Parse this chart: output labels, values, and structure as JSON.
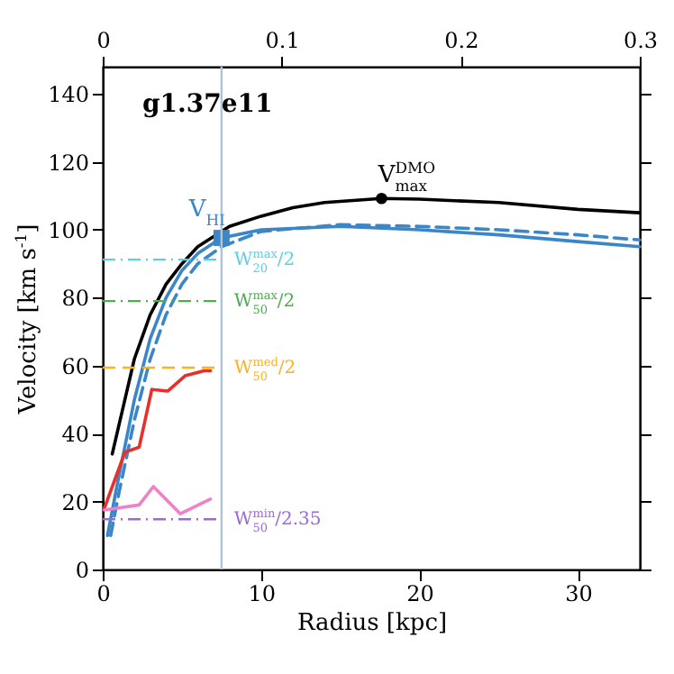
{
  "chart_data": {
    "type": "line",
    "xlabel": "Radius [kpc]",
    "ylabel": "Velocity [km s$^{-1}$]",
    "xlim": [
      0,
      33.9
    ],
    "xticks": [
      0,
      10,
      20,
      30
    ],
    "ylim": [
      0,
      148
    ],
    "yticks": [
      0,
      20,
      40,
      60,
      80,
      100,
      120,
      140
    ],
    "x2lim": [
      0,
      0.3
    ],
    "x2ticks": [
      0,
      0.1,
      0.2,
      0.3
    ],
    "grid": false,
    "series": [
      {
        "color": "#000000",
        "line_style": "solid",
        "x": [
          0.6,
          1,
          1.5,
          2,
          3,
          4,
          5,
          6,
          7,
          8,
          10,
          12,
          14,
          17.6,
          20,
          25,
          30,
          33.9
        ],
        "values": [
          34,
          42,
          52,
          62,
          75,
          84,
          90,
          95,
          98,
          101,
          104,
          106.5,
          108,
          109.2,
          109,
          108,
          106,
          105
        ]
      },
      {
        "color": "#3a86c8",
        "line_style": "solid",
        "x": [
          0.3,
          1,
          2,
          3,
          4,
          5,
          6,
          7.5,
          10,
          15,
          20,
          25,
          30,
          33.9
        ],
        "values": [
          10,
          27,
          50,
          68,
          80,
          88,
          93,
          97.6,
          100,
          101,
          100,
          98.5,
          96.5,
          95
        ]
      },
      {
        "color": "#3a86c8",
        "line_style": "dashed",
        "x": [
          0.5,
          1,
          2,
          3,
          4,
          5,
          6,
          7.5,
          10,
          15,
          20,
          25,
          30,
          33.9
        ],
        "values": [
          10,
          22,
          44,
          62,
          75,
          84,
          90,
          95,
          99.5,
          101.5,
          101,
          100,
          98.5,
          97
        ]
      },
      {
        "color": "#e8302a",
        "line_style": "solid",
        "x": [
          0.1,
          1.4,
          2.3,
          3.1,
          4.1,
          5.2,
          6.4,
          6.8
        ],
        "values": [
          18,
          34.5,
          36,
          53,
          52.5,
          57,
          58.5,
          58.5
        ]
      },
      {
        "color": "#ee82c6",
        "line_style": "solid",
        "x": [
          0.1,
          2.3,
          3.2,
          4.9,
          6.8
        ],
        "values": [
          17.5,
          19,
          24.4,
          16.4,
          20.7
        ]
      },
      {
        "type": "scatter",
        "marker": "circle",
        "color": "#000000",
        "x": [
          17.6
        ],
        "values": [
          109.2
        ]
      },
      {
        "type": "scatter",
        "marker": "square",
        "color": "#3a86c8",
        "x": [
          7.5
        ],
        "values": [
          97.6
        ]
      }
    ],
    "ref_lines": [
      {
        "axis": "x",
        "value": 7.5,
        "color": "#b0c4d4",
        "line_style": "solid"
      },
      {
        "axis": "y",
        "value": 91.2,
        "label": "W$^{max}$$_{20}$/2",
        "color": "#5fcfdf",
        "line_style": "dashdot"
      },
      {
        "axis": "y",
        "value": 79,
        "label": "W$^{max}$$_{50}$/2",
        "color": "#4cae4c",
        "line_style": "dashdot"
      },
      {
        "axis": "y",
        "value": 59.4,
        "label": "W$^{med}$$_{50}$/2",
        "color": "#f5b326",
        "line_style": "dashed"
      },
      {
        "axis": "y",
        "value": 14.8,
        "label": "W$^{min}$$_{50}$/2.35",
        "color": "#9a6ad6",
        "line_style": "dashdot"
      }
    ],
    "annotations": [
      "g1.37e11",
      {
        "text": "V$^{DMO}$$_{max}$",
        "x": 17.6,
        "y": 109.2
      },
      {
        "text": "V$_{HI}$",
        "x": 7.5,
        "y": 97.6
      }
    ]
  }
}
